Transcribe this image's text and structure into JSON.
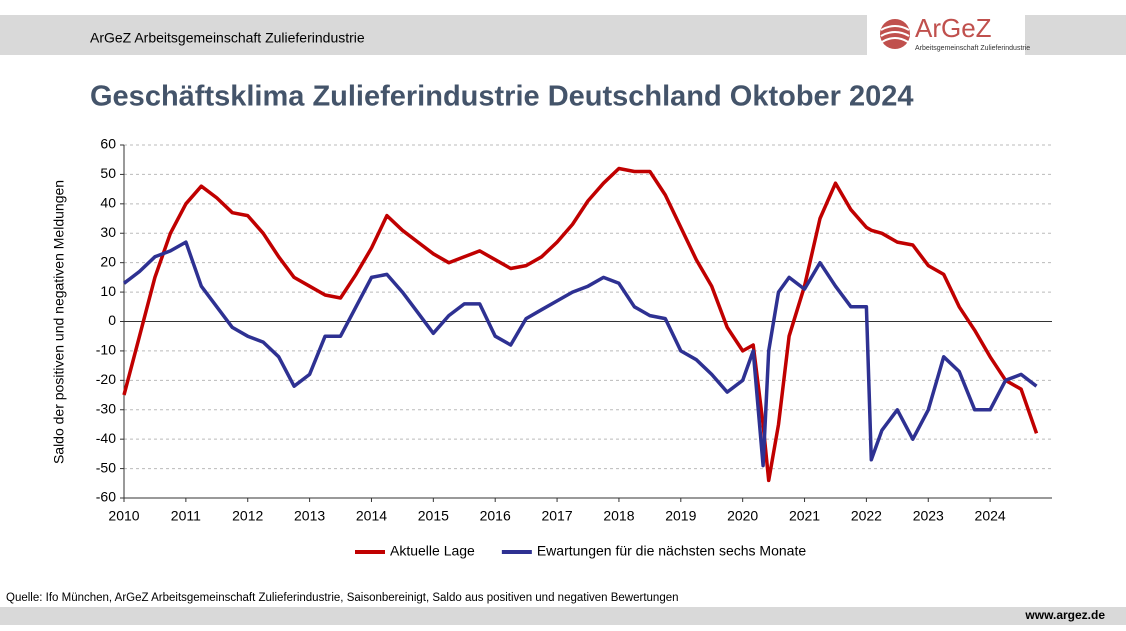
{
  "header": {
    "title": "ArGeZ Arbeitsgemeinschaft Zulieferindustrie"
  },
  "logo": {
    "text": "ArGeZ",
    "subtitle": "Arbeitsgemeinschaft Zulieferindustrie"
  },
  "chart_data": {
    "type": "line",
    "title": "Geschäftsklima Zulieferindustrie Deutschland Oktober 2024",
    "y_label": "Saldo der positiven und negativen Meldungen",
    "x": [
      2010,
      2010.25,
      2010.5,
      2010.75,
      2011,
      2011.25,
      2011.5,
      2011.75,
      2012,
      2012.25,
      2012.5,
      2012.75,
      2013,
      2013.25,
      2013.5,
      2013.75,
      2014,
      2014.25,
      2014.5,
      2014.75,
      2015,
      2015.25,
      2015.5,
      2015.75,
      2016,
      2016.25,
      2016.5,
      2016.75,
      2017,
      2017.25,
      2017.5,
      2017.75,
      2018,
      2018.25,
      2018.5,
      2018.75,
      2019,
      2019.25,
      2019.5,
      2019.75,
      2020,
      2020.17,
      2020.33,
      2020.42,
      2020.58,
      2020.75,
      2021,
      2021.25,
      2021.5,
      2021.75,
      2022,
      2022.08,
      2022.25,
      2022.5,
      2022.75,
      2023,
      2023.25,
      2023.5,
      2023.75,
      2024,
      2024.25,
      2024.5,
      2024.75
    ],
    "series": [
      {
        "name": "Aktuelle Lage",
        "color": "#c00000",
        "values": [
          -25,
          -5,
          15,
          30,
          40,
          46,
          42,
          37,
          36,
          30,
          22,
          15,
          12,
          9,
          8,
          16,
          25,
          36,
          31,
          27,
          23,
          20,
          22,
          24,
          21,
          18,
          19,
          22,
          27,
          33,
          41,
          47,
          52,
          51,
          51,
          43,
          32,
          21,
          12,
          -2,
          -10,
          -8,
          -35,
          -54,
          -35,
          -5,
          12,
          35,
          47,
          38,
          32,
          31,
          30,
          27,
          26,
          19,
          16,
          5,
          -3,
          -12,
          -20,
          -23,
          -38
        ]
      },
      {
        "name": "Ewartungen für die nächsten sechs Monate",
        "color": "#2e3192",
        "values": [
          13,
          17,
          22,
          24,
          27,
          12,
          5,
          -2,
          -5,
          -7,
          -12,
          -22,
          -18,
          -5,
          -5,
          5,
          15,
          16,
          10,
          3,
          -4,
          2,
          6,
          6,
          -5,
          -8,
          1,
          4,
          7,
          10,
          12,
          15,
          13,
          5,
          2,
          1,
          -10,
          -13,
          -18,
          -24,
          -20,
          -10,
          -49,
          -10,
          10,
          15,
          11,
          20,
          12,
          5,
          5,
          -47,
          -37,
          -30,
          -40,
          -30,
          -12,
          -17,
          -30,
          -30,
          -20,
          -18,
          -22
        ]
      }
    ],
    "xlim": [
      2010,
      2025
    ],
    "xticks": [
      2010,
      2011,
      2012,
      2013,
      2014,
      2015,
      2016,
      2017,
      2018,
      2019,
      2020,
      2021,
      2022,
      2023,
      2024
    ],
    "ylim": [
      -60,
      60
    ],
    "yticks": [
      -60,
      -50,
      -40,
      -30,
      -20,
      -10,
      0,
      10,
      20,
      30,
      40,
      50,
      60
    ],
    "grid": true,
    "legend": "bottom"
  },
  "footer": {
    "source": "Quelle: Ifo München, ArGeZ Arbeitsgemeinschaft Zulieferindustrie, Saisonbereinigt, Saldo aus positiven und negativen Bewertungen",
    "url": "www.argez.de"
  }
}
